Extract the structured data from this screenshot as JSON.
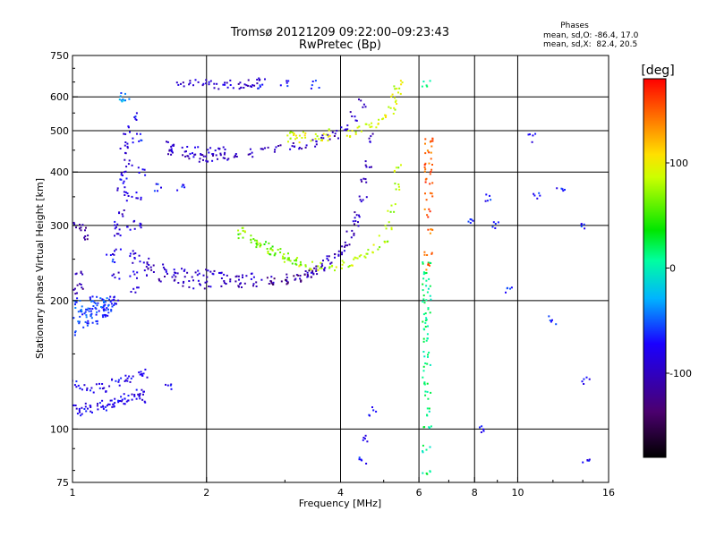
{
  "chart_data": {
    "type": "scatter",
    "title": "Tromsø 20121209 09:22:00–09:23:43",
    "subtitle": "RwPretec (Bp)",
    "stats": {
      "heading": "Phases",
      "line1": "mean, sd,O: -86.4, 17.0",
      "line2": "mean, sd,X:  82.4, 20.5"
    },
    "xlabel": "Frequency [MHz]",
    "ylabel": "Stationary phase Virtual Height [km]",
    "xscale": "log",
    "yscale": "log",
    "xlim": [
      1,
      16
    ],
    "ylim": [
      75,
      750
    ],
    "x_ticks": [
      1,
      2,
      4,
      6,
      8,
      10,
      16
    ],
    "x_ticklabels": [
      "1",
      "2",
      "4",
      "6",
      "8",
      "10",
      "16"
    ],
    "y_ticks": [
      75,
      100,
      200,
      300,
      400,
      500,
      600,
      750
    ],
    "y_ticklabels": [
      "75",
      "100",
      "200",
      "300",
      "400",
      "500",
      "600",
      "750"
    ],
    "grid": true,
    "colorbar": {
      "label": "[deg]",
      "range": [
        -180,
        180
      ],
      "ticks": [
        100,
        0,
        -100
      ],
      "ticklabels": [
        "100",
        "0",
        "-100"
      ],
      "colormap": "rainbow (black-purple-blue-cyan-green-yellow-red)"
    },
    "series": [
      {
        "x": [
          1.0,
          1.02,
          1.03,
          1.05,
          1.05,
          1.06
        ],
        "y": [
          210,
          300,
          230,
          295,
          215,
          280
        ],
        "phase": -110
      },
      {
        "x": [
          1.0,
          1.0,
          1.03,
          1.03,
          1.05,
          1.06,
          1.07,
          1.08,
          1.08,
          1.1,
          1.11,
          1.11,
          1.13,
          1.15,
          1.16,
          1.16,
          1.18,
          1.18,
          1.2,
          1.21,
          1.22,
          1.23
        ],
        "y": [
          170,
          195,
          180,
          200,
          185,
          190,
          175,
          190,
          182,
          195,
          188,
          200,
          180,
          192,
          185,
          200,
          190,
          198,
          188,
          192,
          200,
          195
        ],
        "phase": -60
      },
      {
        "x": [
          1.24,
          1.25,
          1.26,
          1.27,
          1.28,
          1.29,
          1.3,
          1.31,
          1.32,
          1.33,
          1.34,
          1.35,
          1.36,
          1.37,
          1.38,
          1.39,
          1.4,
          1.41
        ],
        "y": [
          200,
          230,
          260,
          290,
          320,
          360,
          400,
          450,
          500,
          420,
          350,
          300,
          260,
          230,
          210,
          250,
          300,
          350
        ],
        "phase": -90
      },
      {
        "x": [
          1.22,
          1.26,
          1.3,
          1.34,
          1.38,
          1.42,
          1.44
        ],
        "y": [
          250,
          300,
          380,
          470,
          540,
          480,
          400
        ],
        "phase": -70
      },
      {
        "x": [
          1.3,
          1.32
        ],
        "y": [
          600,
          590
        ],
        "phase": -40
      },
      {
        "x": [
          1.0,
          1.03,
          1.06,
          1.09,
          1.12,
          1.15,
          1.18,
          1.21,
          1.24,
          1.27,
          1.3,
          1.33,
          1.36,
          1.39,
          1.42,
          1.45,
          1.0,
          1.05,
          1.1,
          1.15,
          1.2,
          1.25,
          1.3,
          1.35,
          1.4,
          1.45
        ],
        "y": [
          112,
          110,
          111,
          113,
          112,
          114,
          113,
          115,
          114,
          116,
          118,
          117,
          119,
          120,
          122,
          118,
          128,
          126,
          124,
          127,
          125,
          128,
          131,
          130,
          133,
          135
        ],
        "phase": -80
      },
      {
        "x": [
          1.45,
          1.5,
          1.6,
          1.7,
          1.8,
          1.9,
          2.0,
          2.2,
          2.4,
          2.6,
          2.8,
          3.0,
          3.2,
          3.4
        ],
        "y": [
          240,
          232,
          226,
          222,
          220,
          218,
          218,
          218,
          220,
          220,
          222,
          225,
          228,
          232
        ],
        "phase": -100
      },
      {
        "x": [
          1.5,
          1.6,
          1.7,
          1.8,
          1.9,
          2.0,
          2.1,
          2.2,
          2.3,
          2.4,
          2.5
        ],
        "y": [
          245,
          238,
          234,
          232,
          230,
          232,
          230,
          228,
          226,
          224,
          226
        ],
        "phase": -95
      },
      {
        "x": [
          3.4,
          3.5,
          3.6,
          3.7,
          3.8,
          3.9,
          4.0,
          4.1,
          4.2,
          4.3,
          4.4,
          4.5,
          4.55,
          4.6,
          4.65
        ],
        "y": [
          232,
          236,
          240,
          244,
          248,
          255,
          262,
          272,
          285,
          300,
          320,
          345,
          380,
          420,
          480
        ],
        "phase": -100
      },
      {
        "x": [
          2.8,
          3.0,
          3.2,
          3.4
        ],
        "y": [
          222,
          220,
          226,
          230
        ],
        "phase": -140
      },
      {
        "x": [
          1.65,
          1.8,
          1.9,
          2.0,
          2.1,
          2.2,
          2.3,
          2.5,
          2.7,
          2.9,
          3.1,
          3.3,
          3.5,
          3.7,
          3.9,
          4.1,
          4.3,
          4.5
        ],
        "y": [
          440,
          435,
          433,
          432,
          432,
          434,
          438,
          442,
          448,
          452,
          458,
          464,
          470,
          478,
          490,
          510,
          540,
          580
        ],
        "phase": -100
      },
      {
        "x": [
          1.65,
          1.7,
          1.8,
          1.9,
          2.0,
          2.1,
          2.2
        ],
        "y": [
          460,
          455,
          450,
          448,
          445,
          450,
          447
        ],
        "phase": -90
      },
      {
        "x": [
          3.05,
          3.1,
          3.2,
          3.3,
          3.5,
          3.7,
          3.8
        ],
        "y": [
          486,
          482,
          478,
          490,
          480,
          485,
          495
        ],
        "phase": 90
      },
      {
        "x": [
          1.75,
          1.85,
          1.95,
          2.05,
          2.15,
          2.25,
          2.35,
          2.45,
          2.55,
          2.65
        ],
        "y": [
          650,
          648,
          645,
          642,
          640,
          640,
          642,
          645,
          648,
          650
        ],
        "phase": -95
      },
      {
        "x": [
          2.4,
          2.6,
          2.8,
          3.0,
          3.2,
          3.4,
          3.6,
          3.8,
          4.0,
          4.2,
          4.4,
          4.6,
          4.8,
          5.0,
          5.1,
          5.2,
          5.3,
          5.35
        ],
        "y": [
          295,
          272,
          262,
          252,
          246,
          242,
          240,
          240,
          242,
          245,
          250,
          257,
          265,
          280,
          300,
          330,
          370,
          410
        ],
        "phase": 80
      },
      {
        "x": [
          2.4,
          2.5,
          2.6,
          2.7,
          2.8,
          2.9,
          3.0,
          3.1,
          3.2
        ],
        "y": [
          285,
          280,
          272,
          268,
          262,
          258,
          252,
          250,
          248
        ],
        "phase": 60
      },
      {
        "x": [
          4.2,
          4.4,
          4.6,
          4.8,
          5.0,
          5.2,
          5.3,
          5.35,
          5.4
        ],
        "y": [
          490,
          500,
          510,
          520,
          540,
          560,
          590,
          620,
          640
        ],
        "phase": 90
      },
      {
        "x": [
          6.25,
          6.25,
          6.25,
          6.25,
          6.25,
          6.25,
          6.25,
          6.25,
          6.25,
          6.25,
          6.25,
          6.25,
          6.25,
          6.25,
          6.25,
          6.25,
          6.25,
          6.25
        ],
        "y": [
          78,
          90,
          100,
          110,
          120,
          130,
          140,
          150,
          160,
          170,
          180,
          190,
          200,
          210,
          220,
          230,
          245,
          640
        ],
        "phase": 10
      },
      {
        "x": [
          6.3,
          6.3,
          6.3,
          6.3,
          6.3,
          6.3,
          6.3,
          6.3,
          6.3,
          6.3,
          6.3
        ],
        "y": [
          260,
          290,
          320,
          350,
          380,
          400,
          420,
          440,
          460,
          480,
          240
        ],
        "phase": 150
      },
      {
        "x": [
          1.55,
          1.65,
          1.75,
          2.65,
          3.0,
          3.5,
          4.5,
          4.5,
          4.7,
          7.8,
          8.4,
          8.5,
          8.9,
          9.5,
          10.8,
          11.0,
          12.0,
          12.5,
          14.0,
          14.2,
          14.3
        ],
        "y": [
          370,
          125,
          370,
          640,
          640,
          640,
          95,
          85,
          110,
          310,
          100,
          350,
          300,
          210,
          480,
          350,
          180,
          360,
          300,
          130,
          85
        ],
        "phase": -70
      }
    ]
  }
}
